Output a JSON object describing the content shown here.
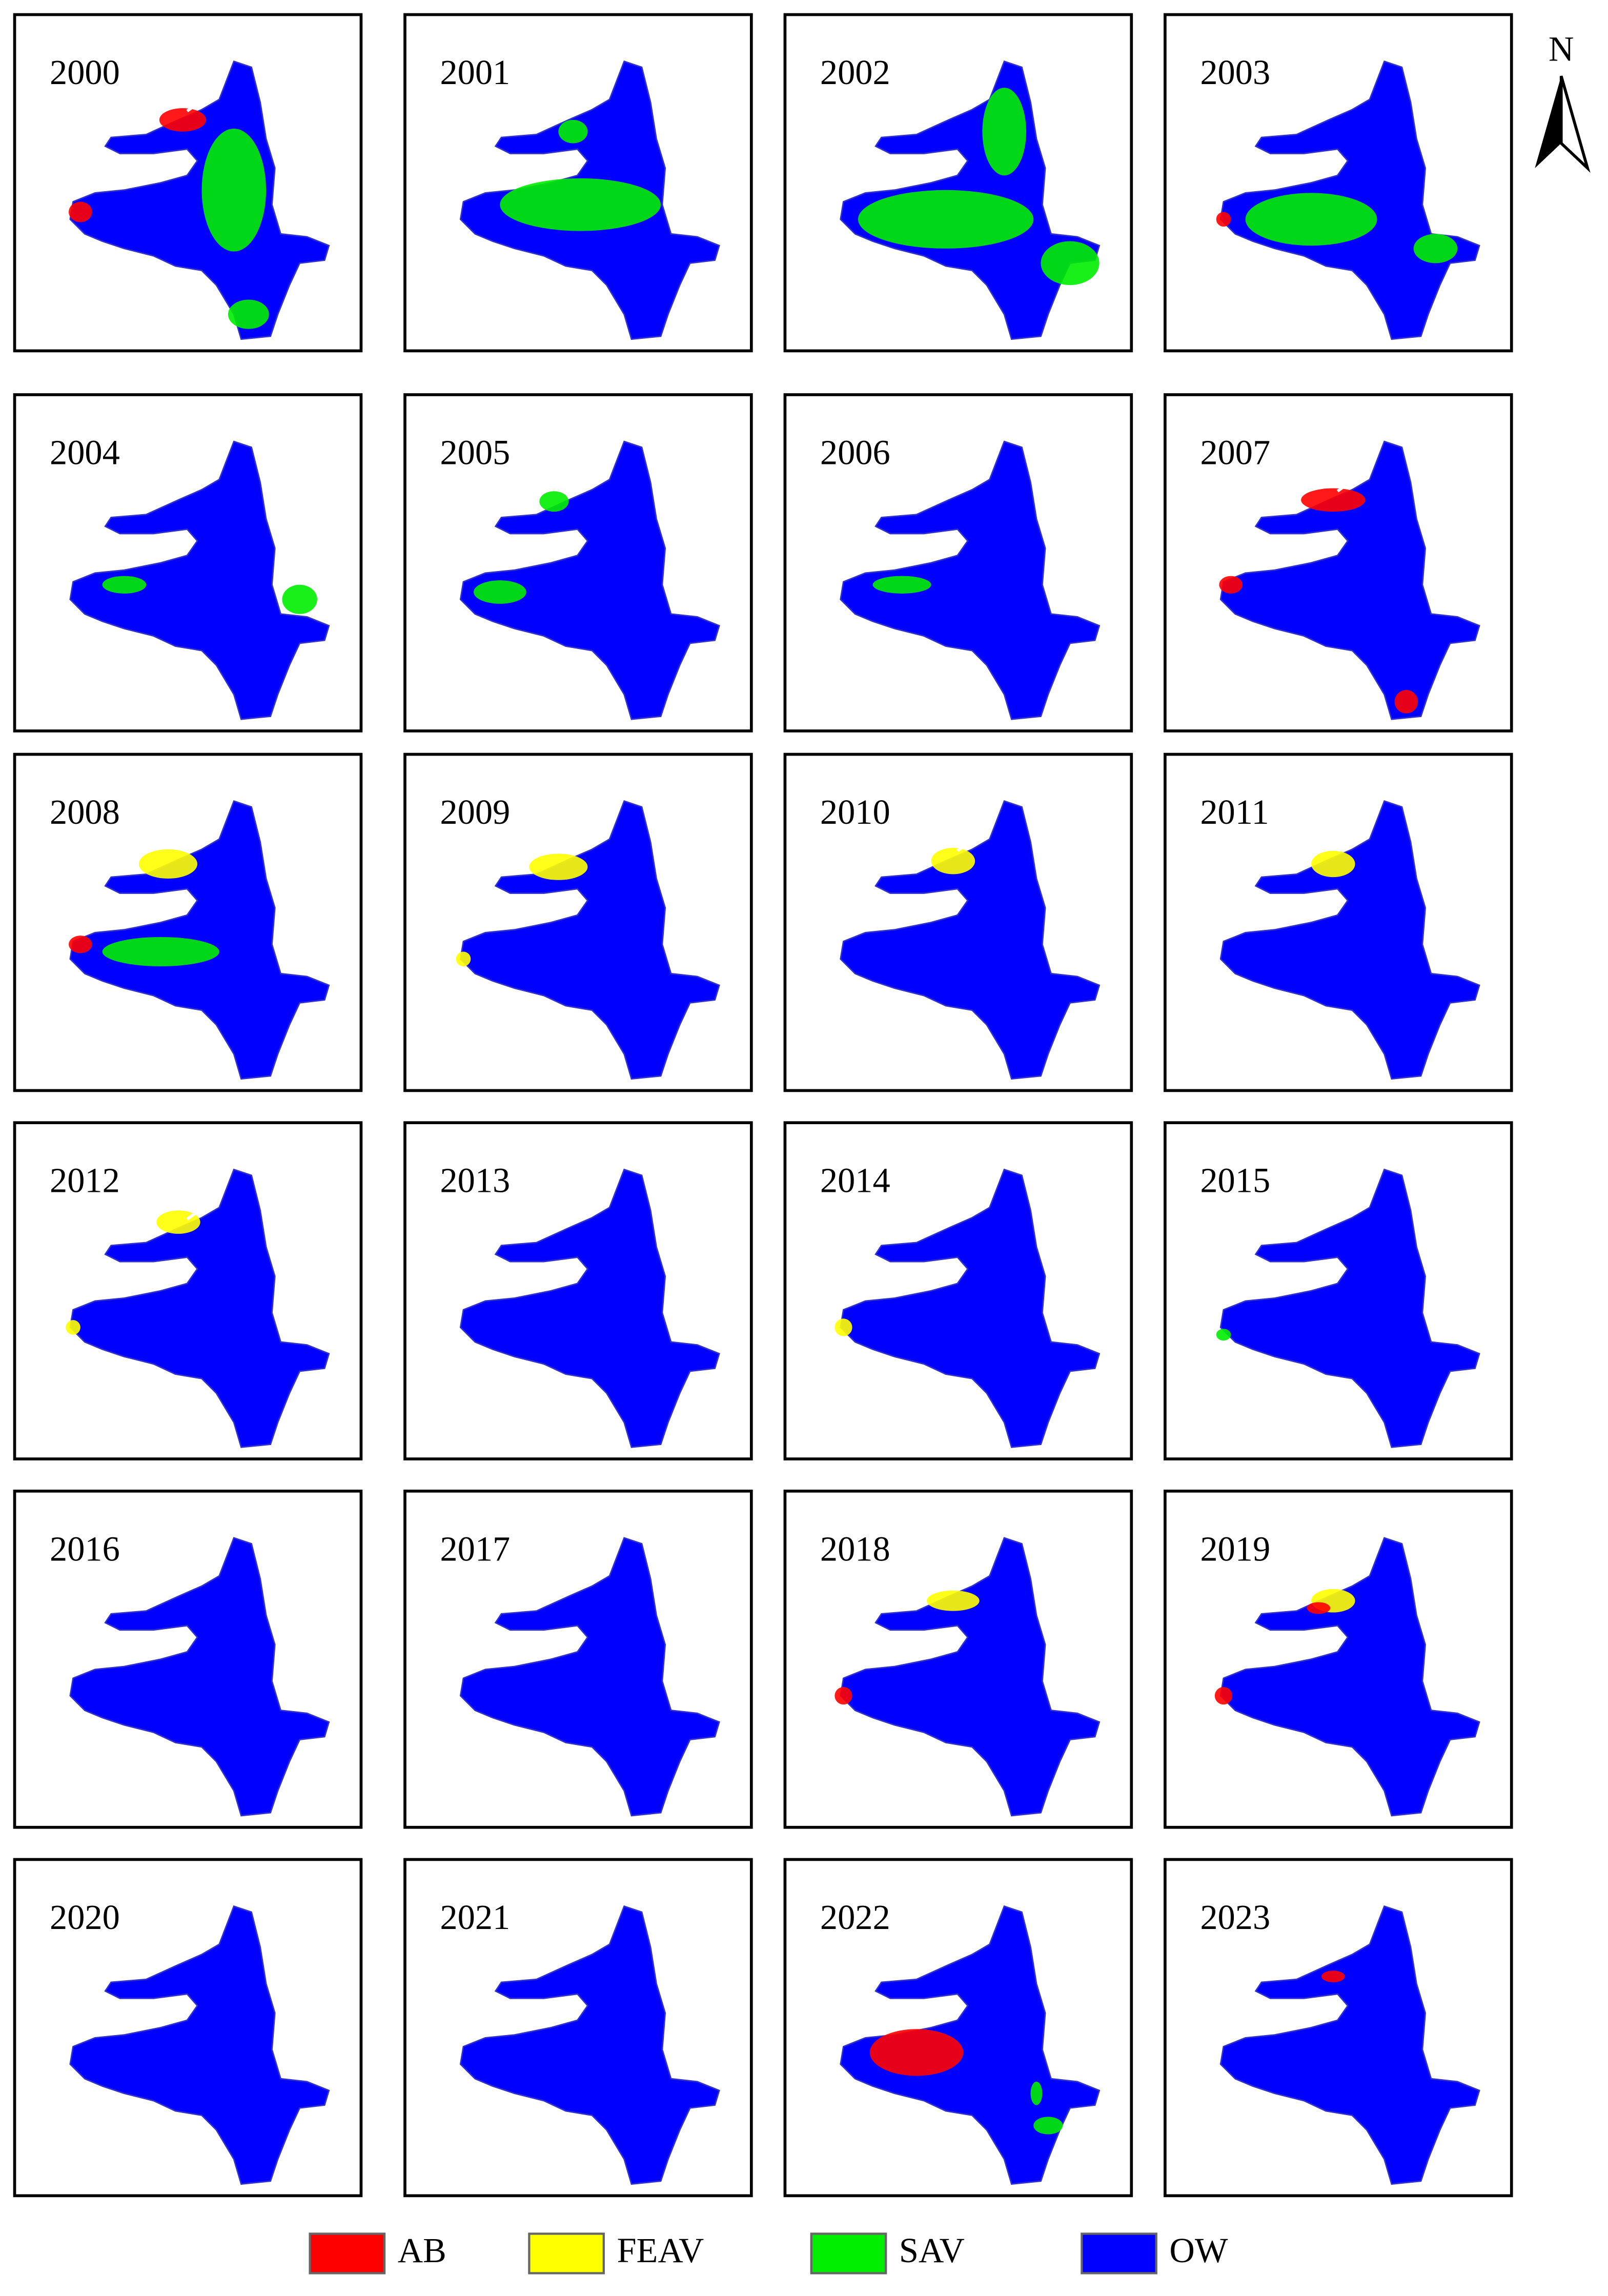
{
  "panels": [
    {
      "year": "2000"
    },
    {
      "year": "2001"
    },
    {
      "year": "2002"
    },
    {
      "year": "2003"
    },
    {
      "year": "2004"
    },
    {
      "year": "2005"
    },
    {
      "year": "2006"
    },
    {
      "year": "2007"
    },
    {
      "year": "2008"
    },
    {
      "year": "2009"
    },
    {
      "year": "2010"
    },
    {
      "year": "2011"
    },
    {
      "year": "2012"
    },
    {
      "year": "2013"
    },
    {
      "year": "2014"
    },
    {
      "year": "2015"
    },
    {
      "year": "2016"
    },
    {
      "year": "2017"
    },
    {
      "year": "2018"
    },
    {
      "year": "2019"
    },
    {
      "year": "2020"
    },
    {
      "year": "2021"
    },
    {
      "year": "2022"
    },
    {
      "year": "2023"
    }
  ],
  "legend": [
    {
      "label": "AB",
      "color": "#ff0000"
    },
    {
      "label": "FEAV",
      "color": "#ffff00"
    },
    {
      "label": "SAV",
      "color": "#00ee00"
    },
    {
      "label": "OW",
      "color": "#0000ff"
    }
  ],
  "north_arrow": "N"
}
